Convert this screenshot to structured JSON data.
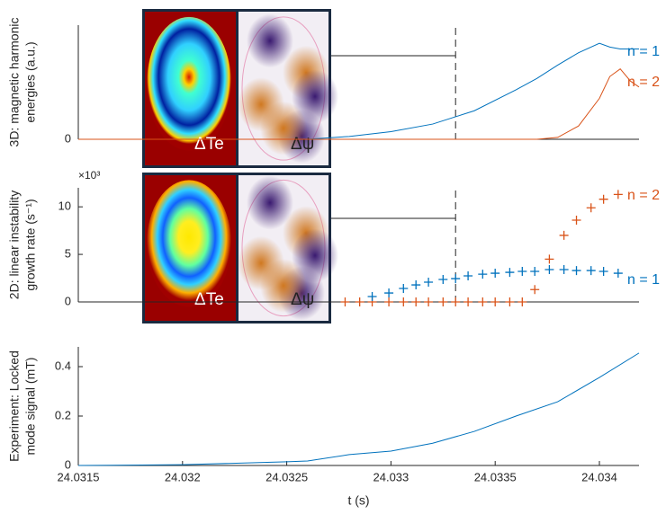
{
  "chart_data": [
    {
      "type": "line",
      "ylabel": [
        "3D: magnetic harmonic",
        "energies (a.u.)"
      ],
      "x": [
        24.0315,
        24.0326,
        24.0328,
        24.033,
        24.0332,
        24.0334,
        24.0336,
        24.0337,
        24.0338,
        24.0339,
        24.034,
        24.03405,
        24.0341,
        24.03415,
        24.03419
      ],
      "xlim": [
        24.0315,
        24.03419
      ],
      "ylim": [
        0,
        1.2
      ],
      "yticks": [
        0
      ],
      "series": [
        {
          "name": "n = 1",
          "color": "#0072bd",
          "values": [
            null,
            0,
            0.03,
            0.08,
            0.16,
            0.3,
            0.52,
            0.64,
            0.78,
            0.91,
            1.01,
            0.97,
            0.95,
            0.95,
            0.95
          ]
        },
        {
          "name": "n = 2",
          "color": "#d95319",
          "values": [
            0,
            0,
            0,
            0,
            0,
            0,
            0,
            0,
            0.02,
            0.14,
            0.43,
            0.66,
            0.74,
            0.61,
            0.55
          ]
        }
      ],
      "marker_x": 24.03331,
      "inset_labels": [
        "ΔTe",
        "Δψ"
      ]
    },
    {
      "type": "scatter",
      "ylabel": [
        "2D: linear instability",
        "growth rate (s⁻¹)"
      ],
      "exponent_label": "×10³",
      "xlim": [
        24.0315,
        24.03419
      ],
      "ylim": [
        0,
        12
      ],
      "yticks": [
        0,
        5,
        10
      ],
      "series": [
        {
          "name": "n = 2",
          "color": "#d95319",
          "x": [
            24.03278,
            24.03285,
            24.03291,
            24.03299,
            24.03306,
            24.03312,
            24.03318,
            24.03325,
            24.03331,
            24.03337,
            24.03344,
            24.0335,
            24.03357,
            24.03363,
            24.03369,
            24.03376,
            24.03383,
            24.03389,
            24.03396,
            24.03402,
            24.03409
          ],
          "values": [
            0,
            0,
            0,
            0,
            0,
            0,
            0,
            0,
            0,
            0,
            0,
            0,
            0,
            0,
            1.3,
            4.5,
            7.0,
            8.6,
            9.9,
            10.8,
            11.3
          ]
        },
        {
          "name": "n = 1",
          "color": "#0072bd",
          "x": [
            24.03291,
            24.03299,
            24.03306,
            24.03312,
            24.03318,
            24.03325,
            24.03331,
            24.03337,
            24.03344,
            24.0335,
            24.03357,
            24.03363,
            24.03369,
            24.03376,
            24.03383,
            24.03389,
            24.03396,
            24.03402,
            24.03409
          ],
          "values": [
            0.57,
            0.94,
            1.42,
            1.79,
            2.08,
            2.36,
            2.45,
            2.74,
            2.92,
            3.02,
            3.11,
            3.21,
            3.21,
            3.4,
            3.4,
            3.3,
            3.3,
            3.21,
            3.02
          ]
        }
      ],
      "marker_x": 24.03331,
      "inset_labels": [
        "ΔTe",
        "Δψ"
      ]
    },
    {
      "type": "line",
      "ylabel": [
        "Experiment: Locked",
        "mode signal (mT)"
      ],
      "xlabel": "t (s)",
      "x": [
        24.0315,
        24.032,
        24.0325,
        24.0326,
        24.0328,
        24.033,
        24.0332,
        24.0334,
        24.0336,
        24.0338,
        24.034,
        24.03419
      ],
      "xlim": [
        24.0315,
        24.03419
      ],
      "xticks": [
        24.0315,
        24.032,
        24.0325,
        24.033,
        24.0335,
        24.034
      ],
      "ylim": [
        0,
        0.48
      ],
      "yticks": [
        0,
        0.2,
        0.4
      ],
      "series": [
        {
          "color": "#0072bd",
          "values": [
            0,
            0.003,
            0.015,
            0.018,
            0.044,
            0.058,
            0.09,
            0.138,
            0.2,
            0.258,
            0.356,
            0.455
          ]
        }
      ]
    }
  ]
}
